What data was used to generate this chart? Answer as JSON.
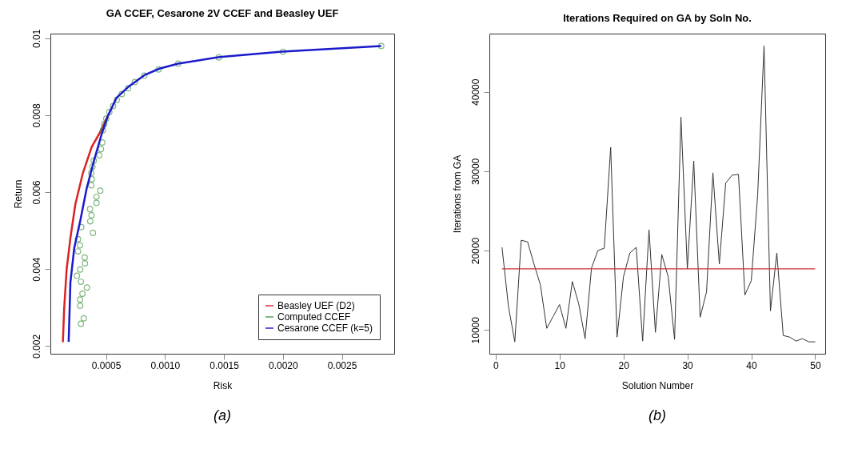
{
  "chart_data": [
    {
      "type": "line",
      "title": "GA CCEF, Cesarone 2V CCEF and Beasley UEF",
      "xlabel": "Risk",
      "ylabel": "Return",
      "xlim": [
        2.8e-05,
        0.002944
      ],
      "ylim": [
        0.0018,
        0.01012
      ],
      "xticks": [
        0.0005,
        {
          "value": 0.001,
          "label": "0.0010"
        },
        0.0015,
        {
          "value": 0.002,
          "label": "0.0020"
        },
        0.0025
      ],
      "yticks": [
        0.002,
        0.004,
        0.006,
        0.008,
        0.01
      ],
      "grid": false,
      "legend": "bottom right",
      "annotations": [
        "(a)"
      ],
      "series": [
        {
          "name": "Beasley UEF (D2)",
          "color": "#dd2222",
          "type": "line",
          "line_style": "solid",
          "x": [
            0.000134,
            0.000145,
            0.000166,
            0.000198,
            0.00024,
            0.000304,
            0.000379,
            0.000443,
            0.000485,
            0.000517
          ],
          "values": [
            0.0021,
            0.00298,
            0.004,
            0.00481,
            0.00569,
            0.0065,
            0.00718,
            0.00752,
            0.00779,
            0.00799
          ]
        },
        {
          "name": "Computed CCEF",
          "color": "#4a9a4a",
          "type": "scatter",
          "marker": "circle",
          "x": [
            0.002834,
            0.002,
            0.001456,
            0.001112,
            0.000946,
            0.000825,
            0.000744,
            0.000687,
            0.000634,
            0.000591,
            0.00056,
            0.000528,
            0.000502,
            0.000485,
            0.000474,
            0.000468,
            0.000457,
            0.000443,
            0.000396,
            0.000385,
            0.000375,
            0.000379,
            0.000375,
            0.000451,
            0.000419,
            0.000419,
            0.000364,
            0.000377,
            0.000366,
            0.00029,
            0.000389,
            0.000262,
            0.000279,
            0.000262,
            0.000319,
            0.000321,
            0.000281,
            0.000253,
            0.000287,
            0.000338,
            0.0003,
            0.000279,
            0.000281,
            0.000311,
            0.000287
          ],
          "values": [
            0.0098,
            0.00965,
            0.0095,
            0.00934,
            0.00919,
            0.00903,
            0.00886,
            0.0087,
            0.00855,
            0.0084,
            0.00824,
            0.00808,
            0.00791,
            0.00777,
            0.00761,
            0.00729,
            0.00712,
            0.00696,
            0.00682,
            0.00666,
            0.0065,
            0.00634,
            0.00618,
            0.00604,
            0.00588,
            0.00572,
            0.00556,
            0.0054,
            0.00524,
            0.00509,
            0.00494,
            0.00478,
            0.00462,
            0.00446,
            0.0043,
            0.00415,
            0.00399,
            0.00383,
            0.00367,
            0.00352,
            0.00336,
            0.00321,
            0.00305,
            0.00272,
            0.00258
          ]
        },
        {
          "name": "Cesarone CCEF (k=5)",
          "color": "#1a1acc",
          "type": "line",
          "line_style": "solid",
          "x": [
            0.000183,
            0.000198,
            0.00023,
            0.000283,
            0.000336,
            0.0004,
            0.000464,
            0.000517,
            0.000591,
            0.000687,
            0.000825,
            0.000953,
            0.001112,
            0.001463,
            0.001994,
            0.002834
          ],
          "values": [
            0.00211,
            0.00366,
            0.00454,
            0.00528,
            0.0061,
            0.00684,
            0.00752,
            0.00799,
            0.00846,
            0.00873,
            0.00904,
            0.00921,
            0.00934,
            0.00951,
            0.00965,
            0.0098
          ]
        }
      ]
    },
    {
      "type": "line",
      "title": "Iterations Required on GA by Soln No.",
      "xlabel": "Solution Number",
      "ylabel": "Iterations from GA",
      "xlim": [
        -0.98,
        51.57
      ],
      "ylim": [
        7000,
        47333
      ],
      "xticks": [
        0,
        10,
        20,
        30,
        40,
        50
      ],
      "yticks": [
        10000,
        20000,
        30000,
        40000
      ],
      "grid": false,
      "legend": false,
      "annotations": [
        "(b)"
      ],
      "ref_lines": [
        {
          "axis": "y",
          "value": 17700,
          "color": "#cc3333",
          "line_style": "solid"
        }
      ],
      "series": [
        {
          "color": "#333333",
          "line_style": "solid",
          "x": [
            1,
            2,
            3,
            4,
            5,
            6,
            7,
            8,
            9,
            10,
            11,
            12,
            13,
            14,
            15,
            16,
            17,
            18,
            19,
            20,
            21,
            22,
            23,
            24,
            25,
            26,
            27,
            28,
            29,
            30,
            31,
            32,
            33,
            34,
            35,
            36,
            37,
            38,
            39,
            40,
            41,
            42,
            43,
            44,
            45,
            46,
            47,
            48,
            49,
            50
          ],
          "values": [
            20400,
            13000,
            8500,
            21300,
            21100,
            18300,
            15700,
            10200,
            11700,
            13200,
            10200,
            16100,
            13300,
            8900,
            17800,
            20000,
            20300,
            33000,
            9100,
            16700,
            19700,
            20400,
            8600,
            22600,
            9700,
            19500,
            16700,
            8800,
            36800,
            17700,
            31300,
            11600,
            14800,
            29800,
            18300,
            28500,
            29500,
            29600,
            14400,
            16200,
            27000,
            45800,
            12400,
            19700,
            9300,
            9100,
            8600,
            8900,
            8500,
            8500
          ]
        }
      ]
    }
  ]
}
